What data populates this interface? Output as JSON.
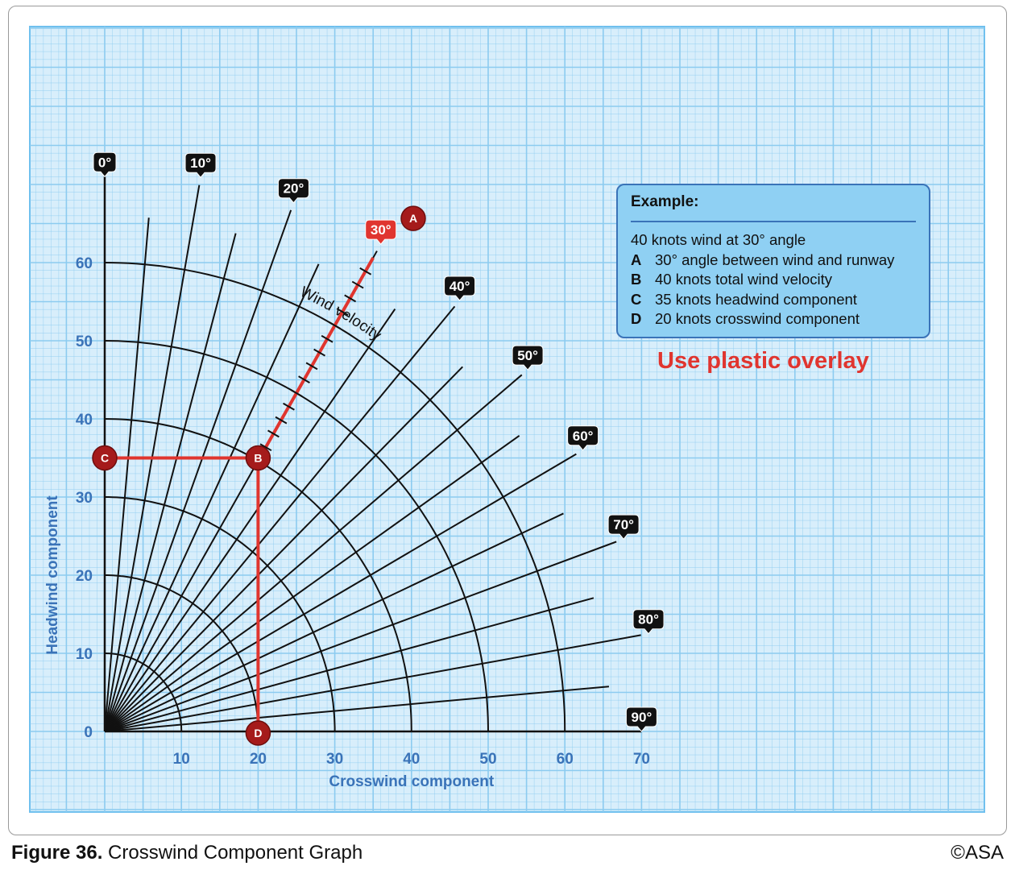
{
  "caption": {
    "figure_label": "Figure 36.",
    "title": "Crosswind Component Graph",
    "copyright": "©ASA"
  },
  "example": {
    "title": "Example:",
    "intro": "40 knots wind at 30° angle",
    "items": [
      {
        "key": "A",
        "text": "30° angle between wind and runway"
      },
      {
        "key": "B",
        "text": "40 knots total wind velocity"
      },
      {
        "key": "C",
        "text": "35 knots headwind component"
      },
      {
        "key": "D",
        "text": "20 knots crosswind component"
      }
    ]
  },
  "overlay_note": "Use plastic overlay",
  "colors": {
    "grid_bg": "#d8eefb",
    "grid_line": "#8ccbf0",
    "axis_text": "#3a73b8",
    "example_red": "#e0352f",
    "marker": "#a51b1b",
    "badge": "#111111"
  },
  "chart_data": {
    "type": "line",
    "subtype": "polar crosswind nomogram",
    "xlabel": "Crosswind component",
    "ylabel": "Headwind component",
    "xlim": [
      0,
      70
    ],
    "ylim": [
      0,
      60
    ],
    "xticks": [
      "10",
      "20",
      "30",
      "40",
      "50",
      "60",
      "70"
    ],
    "yticks": [
      "0",
      "10",
      "20",
      "30",
      "40",
      "50",
      "60"
    ],
    "grid": true,
    "arc_label": "Wind velocity",
    "wind_velocity_arcs": [
      10,
      20,
      30,
      40,
      50,
      60
    ],
    "angle_lines_labeled": [
      "0°",
      "10°",
      "20°",
      "30°",
      "40°",
      "50°",
      "60°",
      "70°",
      "80°",
      "90°"
    ],
    "angle_values": [
      0,
      5,
      10,
      15,
      20,
      25,
      30,
      35,
      40,
      45,
      50,
      55,
      60,
      65,
      70,
      75,
      80,
      85,
      90
    ],
    "example_path": {
      "angle": 30,
      "velocity": 40,
      "points": [
        {
          "label": "A",
          "desc": "30° line"
        },
        {
          "label": "B",
          "x": 20,
          "y": 35
        },
        {
          "label": "C",
          "x": 0,
          "y": 35
        },
        {
          "label": "D",
          "x": 20,
          "y": 0
        }
      ]
    }
  }
}
